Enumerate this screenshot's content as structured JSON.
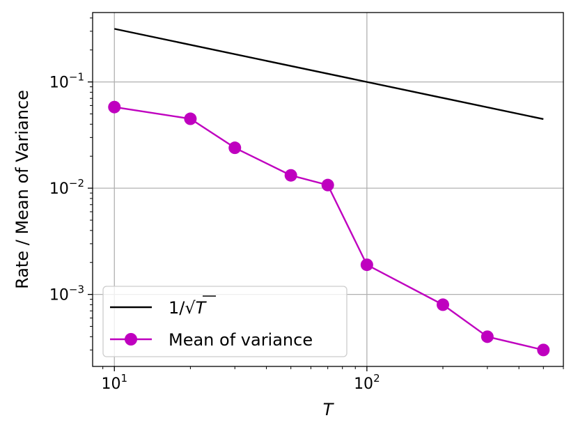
{
  "chart_data": {
    "type": "line",
    "xlabel": "T",
    "ylabel": "Rate / Mean of Variance",
    "xscale": "log",
    "yscale": "log",
    "xlim": [
      8.2,
      600
    ],
    "ylim": [
      0.00021,
      0.45
    ],
    "grid": true,
    "legend_position": "lower-left",
    "x_ticks": [
      {
        "value": 10,
        "base": "10",
        "exp": "1"
      },
      {
        "value": 100,
        "base": "10",
        "exp": "2"
      }
    ],
    "y_ticks": [
      {
        "value": 0.1,
        "base": "10",
        "exp": "−1"
      },
      {
        "value": 0.01,
        "base": "10",
        "exp": "−2"
      },
      {
        "value": 0.001,
        "base": "10",
        "exp": "−3"
      }
    ],
    "series": [
      {
        "name": "1/√T",
        "legend_main": "1/√",
        "legend_var": "T",
        "color": "#000000",
        "marker": "none",
        "x": [
          10,
          500
        ],
        "y": [
          0.3162,
          0.0447
        ]
      },
      {
        "name": "Mean of variance",
        "legend_main": "Mean of variance",
        "legend_var": "",
        "color": "#bf00bf",
        "marker": "circle",
        "x": [
          10,
          20,
          30,
          50,
          70,
          100,
          200,
          300,
          500
        ],
        "y": [
          0.058,
          0.045,
          0.024,
          0.0132,
          0.0107,
          0.0019,
          0.0008,
          0.0004,
          0.0003
        ]
      }
    ]
  }
}
